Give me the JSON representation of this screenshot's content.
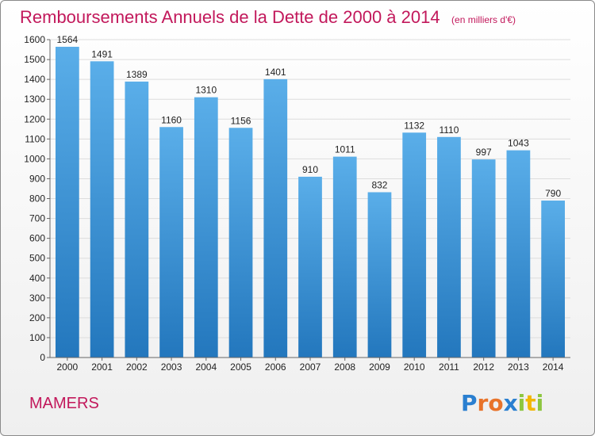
{
  "title": "Remboursements Annuels de la Dette de 2000 à 2014",
  "unit_note": "(en milliers d'€)",
  "commune": "MAMERS",
  "logo": {
    "letters": [
      "P",
      "r",
      "o",
      "x",
      "i",
      "t",
      "i"
    ],
    "colors": [
      "#2a7fd0",
      "#e8732a",
      "#e8732a",
      "#2a7fd0",
      "#8dc63f",
      "#f2b705",
      "#8dc63f"
    ]
  },
  "colors": {
    "bar_top": "#5aaee9",
    "bar_bottom": "#2377bd",
    "grid": "#dddddd",
    "title": "#c2185b"
  },
  "chart_data": {
    "type": "bar",
    "title": "Remboursements Annuels de la Dette de 2000 à 2014",
    "xlabel": "",
    "ylabel": "",
    "categories": [
      "2000",
      "2001",
      "2002",
      "2003",
      "2004",
      "2005",
      "2006",
      "2007",
      "2008",
      "2009",
      "2010",
      "2011",
      "2012",
      "2013",
      "2014"
    ],
    "values": [
      1564,
      1491,
      1389,
      1160,
      1310,
      1156,
      1401,
      910,
      1011,
      832,
      1132,
      1110,
      997,
      1043,
      790
    ],
    "ylim": [
      0,
      1600
    ],
    "yticks": [
      0,
      100,
      200,
      300,
      400,
      500,
      600,
      700,
      800,
      900,
      1000,
      1100,
      1200,
      1300,
      1400,
      1500,
      1600
    ],
    "grid": true,
    "data_labels": true
  }
}
